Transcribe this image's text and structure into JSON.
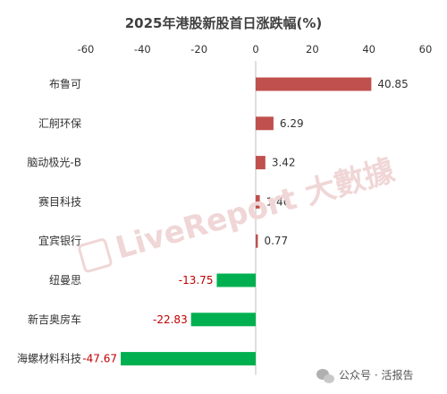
{
  "chart_data": {
    "type": "bar",
    "orientation": "horizontal",
    "title": "2025年港股新股首日涨跌幅(%)",
    "xlim": [
      -60,
      60
    ],
    "x_ticks": [
      -60,
      -40,
      -20,
      0,
      20,
      40,
      60
    ],
    "categories": [
      "布鲁可",
      "汇舸环保",
      "脑动极光-B",
      "赛目科技",
      "宜宾银行",
      "纽曼思",
      "新吉奥房车",
      "海螺材料科技"
    ],
    "values": [
      40.85,
      6.29,
      3.42,
      1.46,
      0.77,
      -13.75,
      -22.83,
      -47.67
    ],
    "value_labels": [
      "40.85",
      "6.29",
      "3.42",
      "1.46",
      "0.77",
      "-13.75",
      "-22.83",
      "-47.67"
    ],
    "colors": {
      "positive": "#c0504d",
      "negative": "#00b050",
      "negative_label": "#c00000"
    },
    "grid": false,
    "legend": "none"
  },
  "watermark": "LiveReport 大數據",
  "credit": "公众号 · 活报告",
  "credit_icon": "wechat-icon"
}
